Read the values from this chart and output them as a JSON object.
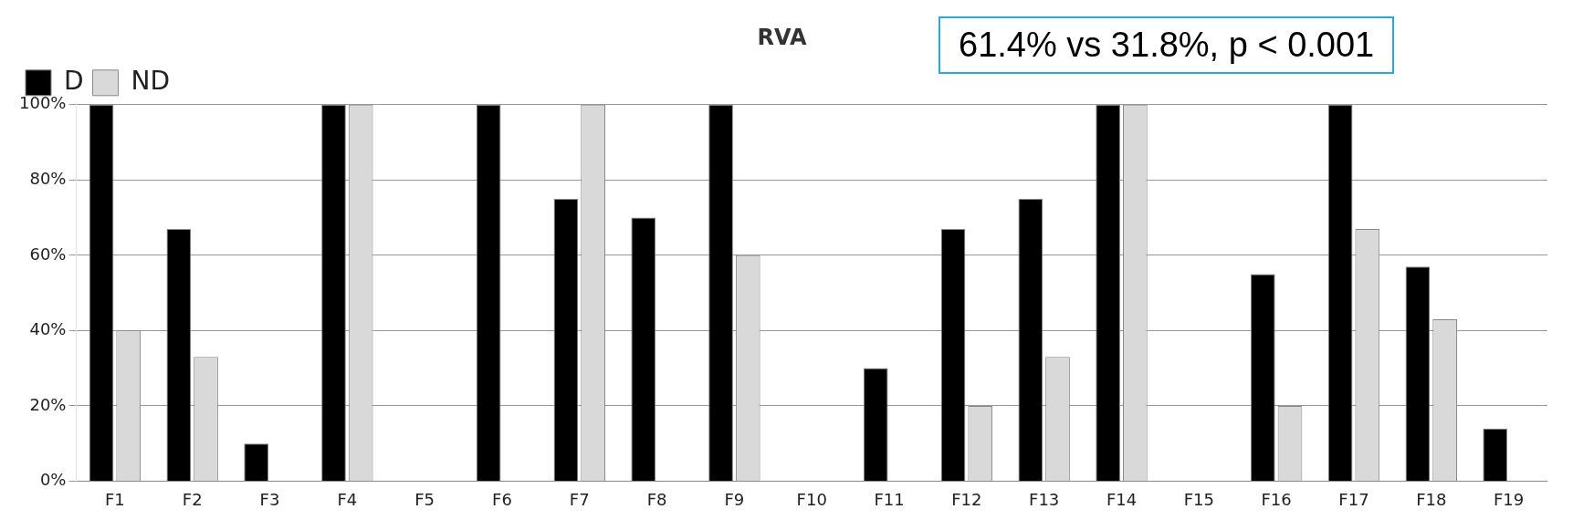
{
  "chart_data": {
    "type": "bar",
    "title": "RVA",
    "categories": [
      "F1",
      "F2",
      "F3",
      "F4",
      "F5",
      "F6",
      "F7",
      "F8",
      "F9",
      "F10",
      "F11",
      "F12",
      "F13",
      "F14",
      "F15",
      "F16",
      "F17",
      "F18",
      "F19"
    ],
    "series": [
      {
        "name": "D",
        "color": "#000000",
        "values": [
          100,
          67,
          10,
          100,
          0,
          100,
          75,
          70,
          100,
          0,
          30,
          67,
          75,
          100,
          0,
          55,
          100,
          57,
          14
        ]
      },
      {
        "name": "ND",
        "color": "#d9d9d9",
        "values": [
          40,
          33,
          0,
          100,
          0,
          0,
          100,
          0,
          60,
          0,
          0,
          20,
          33,
          100,
          0,
          20,
          67,
          43,
          0
        ]
      }
    ],
    "ylim": [
      0,
      100
    ],
    "yticks": [
      {
        "value": 0,
        "label": "0%"
      },
      {
        "value": 20,
        "label": "20%"
      },
      {
        "value": 40,
        "label": "40%"
      },
      {
        "value": 60,
        "label": "60%"
      },
      {
        "value": 80,
        "label": "80%"
      },
      {
        "value": 100,
        "label": "100%"
      }
    ],
    "grid": "y",
    "legend": "top left",
    "annotations": [
      "61.4% vs 31.8%, p < 0.001"
    ]
  }
}
